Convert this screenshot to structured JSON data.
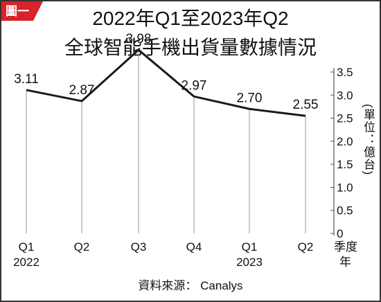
{
  "badge": "圖一",
  "chart_data": {
    "type": "line",
    "title": [
      "2022年Q1至2023年Q2",
      "全球智能手機出貨量數據情況"
    ],
    "categories": [
      [
        "Q1",
        "2022"
      ],
      [
        "Q2"
      ],
      [
        "Q3"
      ],
      [
        "Q4"
      ],
      [
        "Q1",
        "2023"
      ],
      [
        "Q2"
      ]
    ],
    "values": [
      3.11,
      2.87,
      3.98,
      2.97,
      2.7,
      2.55
    ],
    "value_labels": [
      "3.11",
      "2.87",
      "3.98",
      "2.97",
      "2.70",
      "2.55"
    ],
    "color": "#1a1a1a",
    "ylim": [
      0,
      3.5
    ],
    "yticks": [
      0,
      0.5,
      {
        "value": 1,
        "label": "1.0"
      },
      1.5,
      {
        "value": 2,
        "label": "2.0"
      },
      2.5,
      {
        "value": 3,
        "label": "3.0"
      },
      3.5
    ],
    "y_label": "(單位：億台)",
    "x_label": [
      "季度",
      "年"
    ],
    "source": "資料來源： Canalys"
  }
}
